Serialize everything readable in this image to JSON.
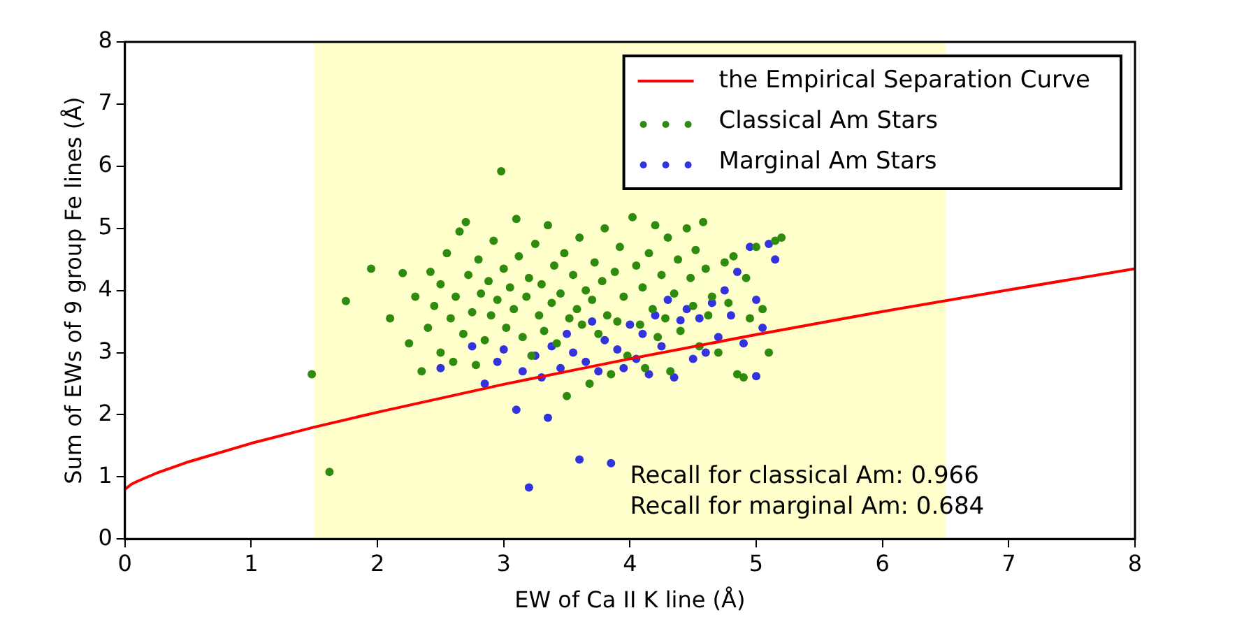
{
  "chart_data": {
    "type": "scatter",
    "xlabel": "EW of Ca II K line (Å)",
    "ylabel": "Sum of EWs of 9 group Fe lines (Å)",
    "xlim": [
      0,
      8
    ],
    "ylim": [
      0,
      8
    ],
    "xticks": [
      0,
      1,
      2,
      3,
      4,
      5,
      6,
      7,
      8
    ],
    "yticks": [
      0,
      1,
      2,
      3,
      4,
      5,
      6,
      7,
      8
    ],
    "grid": false,
    "legend": "top right",
    "marker": "circle",
    "bands": [
      {
        "axis": "x",
        "from": 1.5,
        "to": 6.5,
        "color": "#ffffcc"
      }
    ],
    "annotations": [
      "Recall for classical Am: 0.966",
      "Recall for marginal Am: 0.684"
    ],
    "series": [
      {
        "name": "the Empirical Separation Curve",
        "type": "line",
        "marker": "none",
        "line_style": "solid",
        "color": "#ff0000",
        "x": [
          0,
          0.05,
          0.1,
          0.25,
          0.5,
          1,
          1.5,
          2,
          3,
          4,
          5,
          6,
          7,
          8
        ],
        "values": [
          0.8,
          0.88,
          0.93,
          1.06,
          1.24,
          1.54,
          1.8,
          2.04,
          2.49,
          2.9,
          3.29,
          3.66,
          4.01,
          4.35
        ]
      },
      {
        "name": "Classical Am Stars",
        "color": "#2e8b0e",
        "x": [
          1.48,
          1.62,
          1.75,
          1.95,
          2.1,
          2.2,
          2.25,
          2.3,
          2.35,
          2.4,
          2.42,
          2.45,
          2.5,
          2.5,
          2.55,
          2.58,
          2.6,
          2.62,
          2.65,
          2.68,
          2.7,
          2.72,
          2.75,
          2.78,
          2.8,
          2.82,
          2.85,
          2.88,
          2.9,
          2.92,
          2.95,
          2.98,
          3.0,
          3.02,
          3.05,
          3.08,
          3.1,
          3.12,
          3.15,
          3.18,
          3.2,
          3.22,
          3.25,
          3.28,
          3.3,
          3.32,
          3.35,
          3.38,
          3.4,
          3.42,
          3.45,
          3.48,
          3.5,
          3.52,
          3.55,
          3.58,
          3.6,
          3.62,
          3.65,
          3.68,
          3.7,
          3.72,
          3.75,
          3.78,
          3.8,
          3.82,
          3.85,
          3.88,
          3.9,
          3.92,
          3.95,
          3.98,
          4.02,
          4.05,
          4.08,
          4.1,
          4.12,
          4.15,
          4.18,
          4.2,
          4.22,
          4.25,
          4.28,
          4.3,
          4.32,
          4.35,
          4.38,
          4.4,
          4.45,
          4.48,
          4.5,
          4.52,
          4.55,
          4.58,
          4.6,
          4.62,
          4.65,
          4.7,
          4.75,
          4.78,
          4.82,
          4.85,
          4.9,
          4.92,
          4.95,
          5.0,
          5.05,
          5.1,
          5.15,
          5.2
        ],
        "values": [
          2.65,
          1.08,
          3.83,
          4.35,
          3.55,
          4.28,
          3.15,
          3.9,
          2.7,
          3.4,
          4.3,
          3.75,
          4.1,
          3.0,
          4.6,
          3.55,
          2.85,
          3.9,
          4.95,
          3.3,
          5.1,
          4.25,
          3.65,
          2.8,
          4.5,
          3.95,
          3.2,
          4.15,
          3.6,
          4.8,
          3.85,
          5.92,
          4.35,
          3.4,
          4.05,
          3.7,
          5.15,
          4.55,
          3.25,
          3.9,
          4.2,
          2.95,
          4.75,
          3.6,
          4.1,
          3.35,
          5.05,
          3.8,
          4.4,
          3.15,
          3.95,
          4.6,
          2.3,
          3.55,
          4.25,
          3.7,
          4.85,
          3.45,
          4.0,
          2.5,
          3.85,
          4.45,
          3.3,
          4.15,
          5.0,
          3.6,
          2.65,
          4.3,
          3.5,
          4.7,
          3.9,
          2.95,
          5.18,
          4.4,
          3.45,
          4.05,
          2.75,
          4.6,
          3.7,
          5.05,
          3.25,
          4.25,
          3.55,
          4.85,
          2.7,
          3.95,
          4.5,
          3.35,
          5.0,
          4.2,
          3.75,
          4.65,
          3.1,
          5.1,
          4.35,
          3.6,
          3.9,
          3.0,
          4.45,
          3.8,
          4.55,
          2.65,
          2.6,
          4.2,
          3.55,
          4.7,
          3.7,
          3.0,
          4.8,
          4.85
        ]
      },
      {
        "name": "Marginal Am Stars",
        "color": "#3333dd",
        "x": [
          2.5,
          2.75,
          2.85,
          2.95,
          3.0,
          3.1,
          3.15,
          3.2,
          3.25,
          3.3,
          3.35,
          3.38,
          3.45,
          3.5,
          3.55,
          3.6,
          3.65,
          3.7,
          3.75,
          3.8,
          3.85,
          3.9,
          3.95,
          4.0,
          4.05,
          4.1,
          4.15,
          4.2,
          4.25,
          4.3,
          4.35,
          4.4,
          4.45,
          4.5,
          4.55,
          4.6,
          4.65,
          4.7,
          4.75,
          4.8,
          4.85,
          4.9,
          4.95,
          5.0,
          5.05,
          5.1,
          5.15,
          5.0
        ],
        "values": [
          2.75,
          3.1,
          2.5,
          2.85,
          3.05,
          2.08,
          2.7,
          0.83,
          2.95,
          2.6,
          1.95,
          3.1,
          2.75,
          3.3,
          3.0,
          1.28,
          2.85,
          3.5,
          2.7,
          3.2,
          1.22,
          3.05,
          2.75,
          3.45,
          2.9,
          3.3,
          2.65,
          3.6,
          3.1,
          3.85,
          2.6,
          3.52,
          3.7,
          2.9,
          3.55,
          3.0,
          3.8,
          3.25,
          4.0,
          3.6,
          4.3,
          3.15,
          4.7,
          2.62,
          3.4,
          4.75,
          4.5,
          3.85
        ]
      }
    ]
  }
}
